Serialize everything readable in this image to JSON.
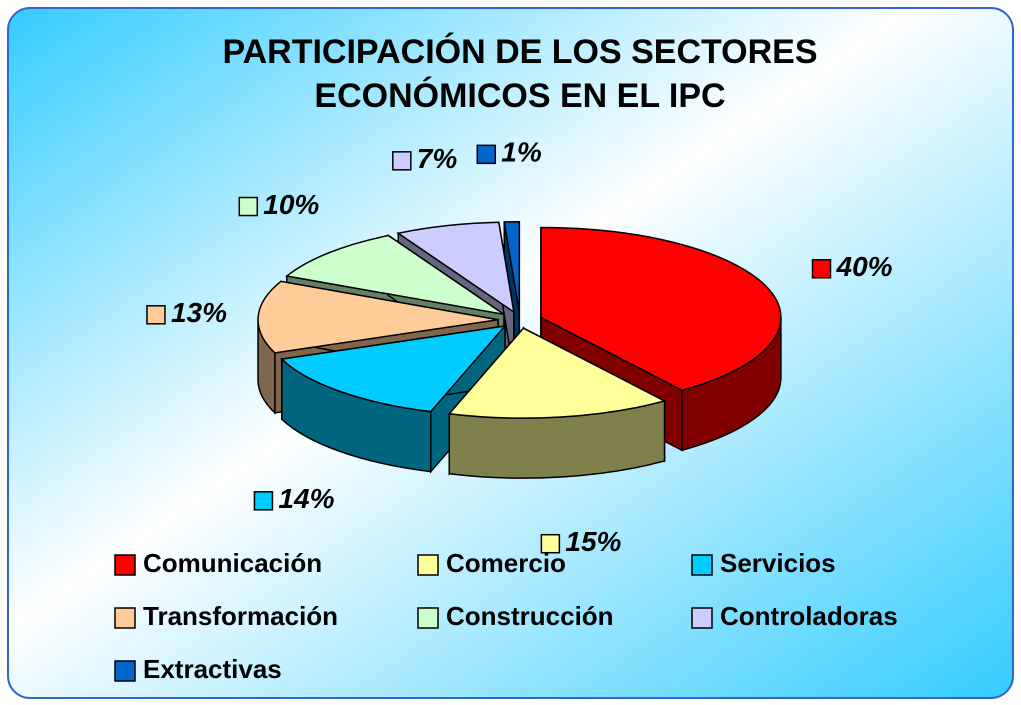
{
  "chart_data": {
    "type": "pie3d",
    "title": "PARTICIPACIÓN DE LOS SECTORES ECONÓMICOS EN EL IPC",
    "categories": [
      "Comunicación",
      "Comercio",
      "Servicios",
      "Transformación",
      "Construcción",
      "Controladoras",
      "Extractivas"
    ],
    "values": [
      40,
      15,
      14,
      13,
      10,
      7,
      1
    ],
    "value_labels": [
      "40%",
      "15%",
      "14%",
      "13%",
      "10%",
      "7%",
      "1%"
    ],
    "colors": [
      "#ff0000",
      "#ffff99",
      "#00ccff",
      "#ffcc99",
      "#ccffcc",
      "#ccccff",
      "#0066cc"
    ],
    "legend": "bottom"
  }
}
